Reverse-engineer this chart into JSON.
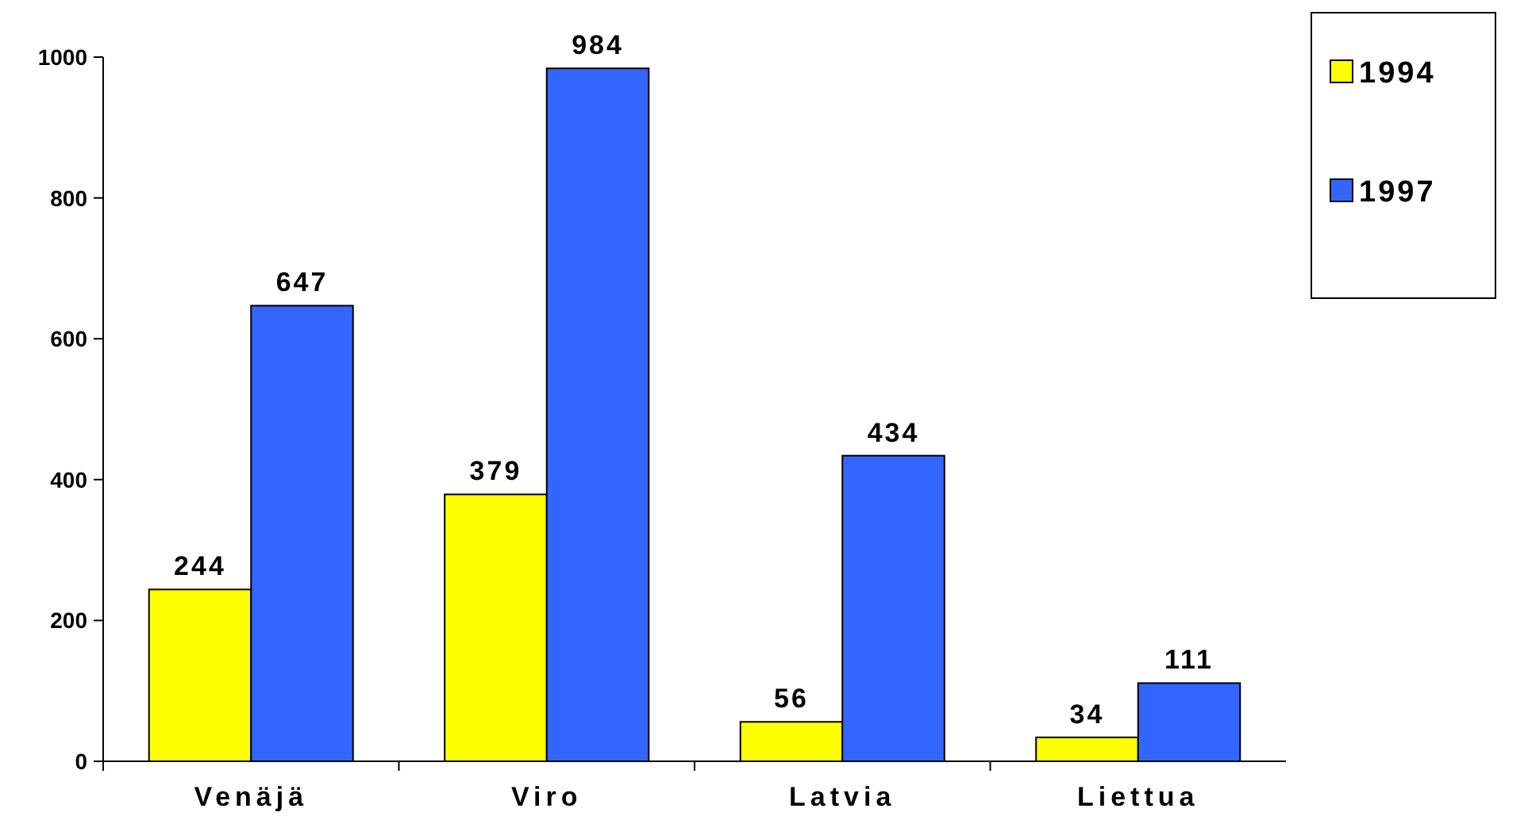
{
  "chart_data": {
    "type": "bar",
    "categories": [
      "Venäjä",
      "Viro",
      "Latvia",
      "Liettua"
    ],
    "series": [
      {
        "name": "1994",
        "color": "#ffff00",
        "values": [
          244,
          379,
          56,
          34
        ]
      },
      {
        "name": "1997",
        "color": "#3366ff",
        "values": [
          647,
          984,
          434,
          111
        ]
      }
    ],
    "ylim": [
      0,
      1000
    ],
    "yticks": [
      0,
      200,
      400,
      600,
      800,
      1000
    ],
    "grid": false,
    "legend": "top right",
    "data_labels": true
  }
}
